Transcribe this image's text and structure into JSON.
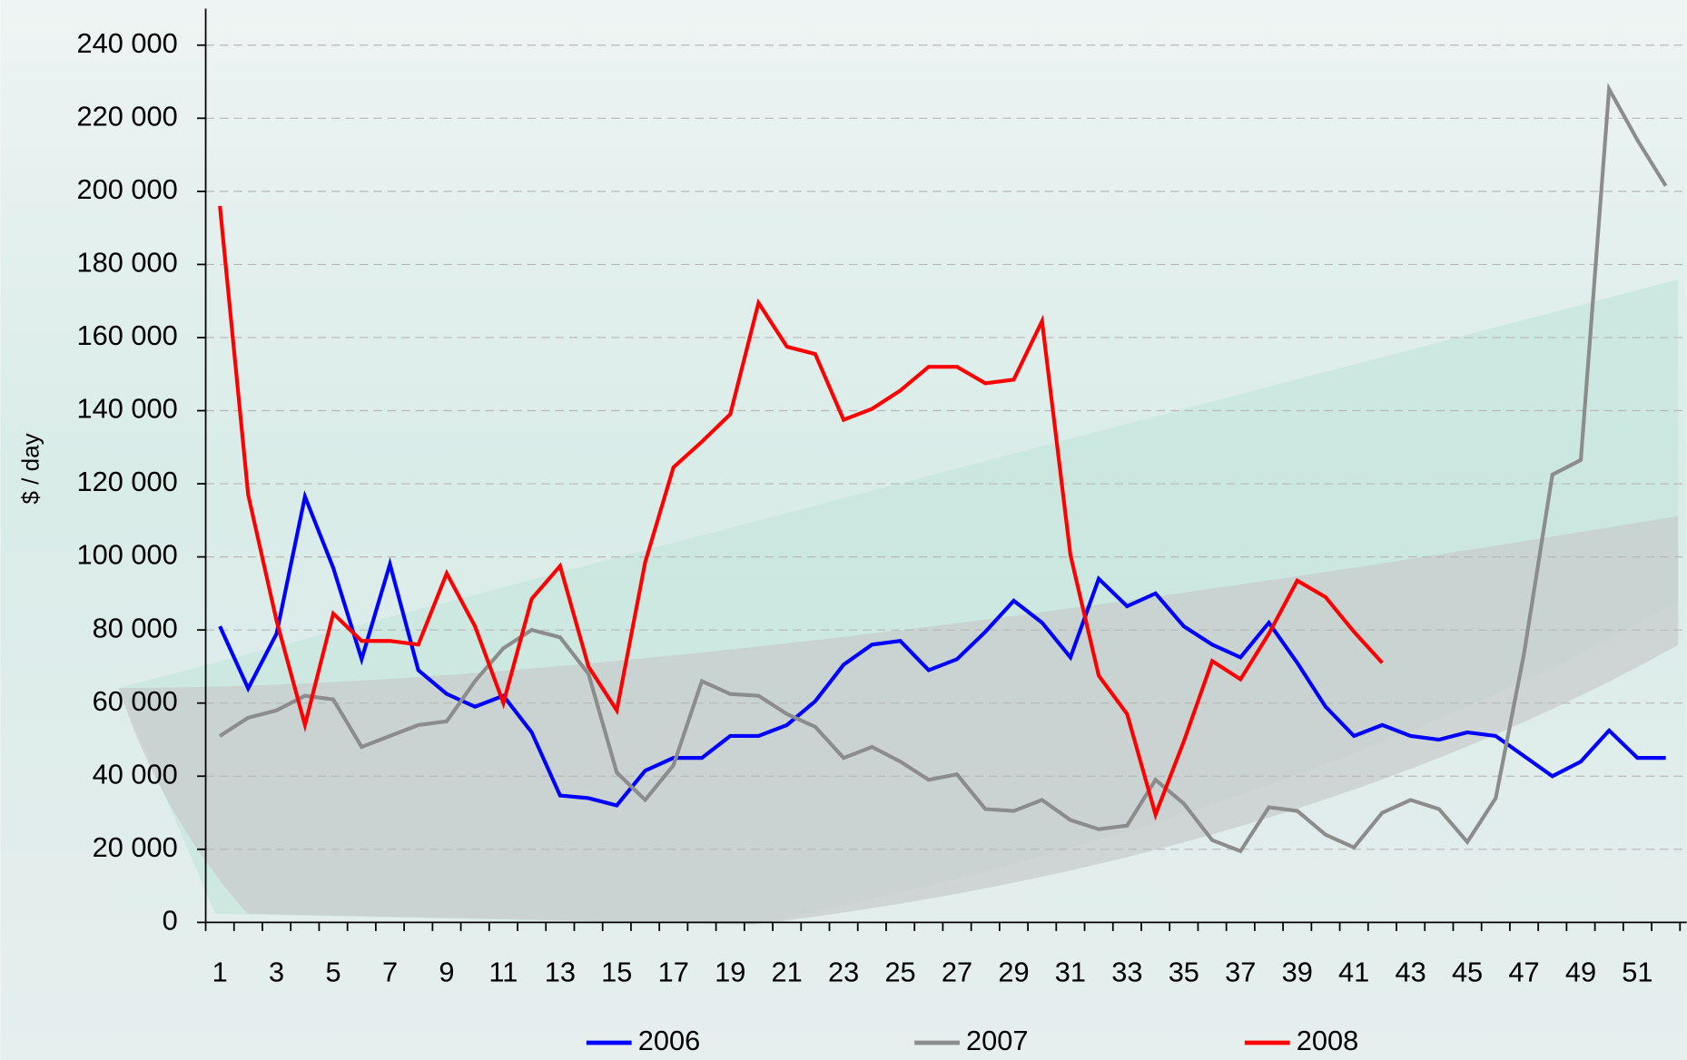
{
  "chart_data": {
    "type": "line",
    "y_label": "$ / day",
    "categories": [
      1,
      null,
      3,
      null,
      5,
      null,
      7,
      null,
      9,
      null,
      11,
      null,
      13,
      null,
      15,
      null,
      17,
      null,
      19,
      null,
      21,
      null,
      23,
      null,
      25,
      null,
      27,
      null,
      29,
      null,
      31,
      null,
      33,
      null,
      35,
      null,
      37,
      null,
      39,
      null,
      41,
      null,
      43,
      null,
      45,
      null,
      47,
      null,
      49,
      null,
      51,
      null
    ],
    "ylim": [
      0,
      250000
    ],
    "yticks": [
      {
        "value": 0,
        "label": "0"
      },
      {
        "value": 20000,
        "label": "20 000"
      },
      {
        "value": 40000,
        "label": "40 000"
      },
      {
        "value": 60000,
        "label": "60 000"
      },
      {
        "value": 80000,
        "label": "80 000"
      },
      {
        "value": 100000,
        "label": "100 000"
      },
      {
        "value": 120000,
        "label": "120 000"
      },
      {
        "value": 140000,
        "label": "140 000"
      },
      {
        "value": 160000,
        "label": "160 000"
      },
      {
        "value": 180000,
        "label": "180 000"
      },
      {
        "value": 200000,
        "label": "200 000"
      },
      {
        "value": 220000,
        "label": "220 000"
      },
      {
        "value": 240000,
        "label": "240 000"
      }
    ],
    "grid": true,
    "legend": "bottom",
    "series": [
      {
        "name": "2006",
        "color": "#0000ff",
        "values": [
          81000,
          64000,
          79000,
          116500,
          97000,
          72000,
          98000,
          69000,
          62500,
          59000,
          62000,
          52000,
          34700,
          34000,
          32000,
          41500,
          45000,
          45000,
          51000,
          51000,
          54000,
          60500,
          70500,
          76000,
          77000,
          69000,
          72000,
          79500,
          88000,
          82000,
          72500,
          94000,
          86500,
          90000,
          81000,
          76000,
          72500,
          82000,
          71000,
          59000,
          51000,
          54000,
          51000,
          50000,
          52000,
          51000,
          45500,
          40000,
          44000,
          52500,
          45000,
          45000
        ]
      },
      {
        "name": "2007",
        "color": "#8c8c8c",
        "values": [
          51000,
          56000,
          58000,
          62000,
          61000,
          48000,
          51000,
          54000,
          55000,
          66000,
          75000,
          80000,
          78000,
          68000,
          41000,
          33500,
          43000,
          66000,
          62500,
          62000,
          57000,
          53500,
          45000,
          48000,
          44000,
          39000,
          40500,
          31000,
          30500,
          33500,
          28000,
          25500,
          26500,
          39000,
          32500,
          22500,
          19500,
          31500,
          30500,
          24000,
          20500,
          30000,
          33500,
          31000,
          22000,
          34000,
          73500,
          122500,
          126500,
          228000,
          214000,
          201500
        ]
      },
      {
        "name": "2008",
        "color": "#ff0000",
        "values": [
          196000,
          117000,
          82500,
          54000,
          84500,
          77000,
          77000,
          76000,
          95500,
          81000,
          60000,
          88500,
          97500,
          70000,
          58000,
          98500,
          124500,
          131500,
          139000,
          169500,
          157500,
          155500,
          137500,
          140500,
          145500,
          152000,
          152000,
          147500,
          148500,
          164500,
          100500,
          67500,
          57000,
          29500,
          49500,
          71500,
          66500,
          79000,
          93500,
          89000,
          79500,
          71000,
          null,
          null,
          null,
          null,
          null,
          null,
          null,
          null,
          null,
          null
        ]
      }
    ]
  }
}
